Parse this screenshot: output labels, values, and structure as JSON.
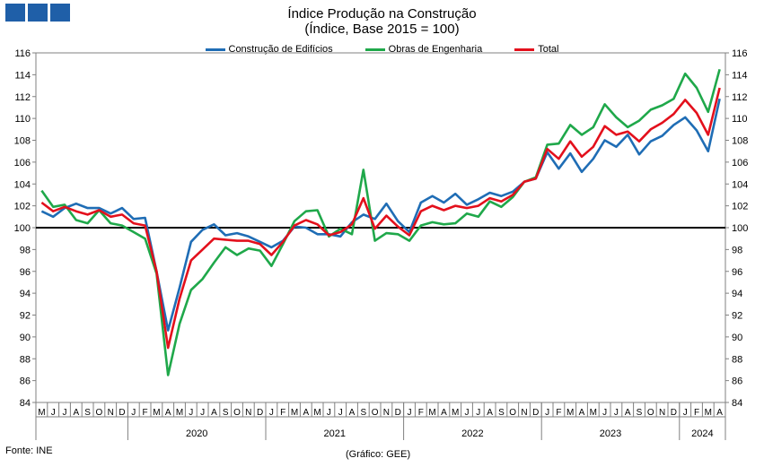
{
  "header": {
    "logo": "logo-squares"
  },
  "chart_data": {
    "type": "line",
    "title": "Índice Produção na Construção",
    "subtitle": "(Índice, Base 2015 = 100)",
    "ylim": [
      84,
      116
    ],
    "yticks": [
      84,
      86,
      88,
      90,
      92,
      94,
      96,
      98,
      100,
      102,
      104,
      106,
      108,
      110,
      112,
      114,
      116
    ],
    "reference_line": 100,
    "legend_position": "top",
    "x": [
      "M",
      "J",
      "J",
      "A",
      "S",
      "O",
      "N",
      "D",
      "J",
      "F",
      "M",
      "A",
      "M",
      "J",
      "J",
      "A",
      "S",
      "O",
      "N",
      "D",
      "J",
      "F",
      "M",
      "A",
      "M",
      "J",
      "J",
      "A",
      "S",
      "O",
      "N",
      "D",
      "J",
      "F",
      "M",
      "A",
      "M",
      "J",
      "J",
      "A",
      "S",
      "O",
      "N",
      "D",
      "J",
      "F",
      "M",
      "A",
      "M",
      "J",
      "J",
      "A",
      "S",
      "O",
      "N",
      "D",
      "J",
      "F",
      "M",
      "A"
    ],
    "year_groups": [
      {
        "label": "",
        "start": 0,
        "end": 8
      },
      {
        "label": "2020",
        "start": 8,
        "end": 20
      },
      {
        "label": "2021",
        "start": 20,
        "end": 32
      },
      {
        "label": "2022",
        "start": 32,
        "end": 44
      },
      {
        "label": "2023",
        "start": 44,
        "end": 56
      },
      {
        "label": "2024",
        "start": 56,
        "end": 60
      }
    ],
    "series": [
      {
        "name": "Construção de Edifícios",
        "color": "#1f6db5",
        "values": [
          101.5,
          101.0,
          101.8,
          102.2,
          101.8,
          101.8,
          101.3,
          101.8,
          100.8,
          100.9,
          96.0,
          90.6,
          94.5,
          98.7,
          99.8,
          100.3,
          99.3,
          99.5,
          99.2,
          98.7,
          98.2,
          98.8,
          100.1,
          100.0,
          99.4,
          99.4,
          99.2,
          100.5,
          101.2,
          100.8,
          102.2,
          100.6,
          99.6,
          102.3,
          102.9,
          102.3,
          103.1,
          102.1,
          102.6,
          103.2,
          102.9,
          103.3,
          104.2,
          104.5,
          106.9,
          105.4,
          106.8,
          105.1,
          106.3,
          108.0,
          107.4,
          108.5,
          106.7,
          107.9,
          108.4,
          109.4,
          110.1,
          108.9,
          107.0,
          111.8
        ]
      },
      {
        "name": "Obras de Engenharia",
        "color": "#1fa84a",
        "values": [
          103.4,
          101.9,
          102.1,
          100.7,
          100.4,
          101.6,
          100.4,
          100.2,
          99.6,
          99.0,
          95.8,
          86.5,
          91.2,
          94.3,
          95.3,
          96.8,
          98.2,
          97.5,
          98.1,
          97.9,
          96.5,
          98.5,
          100.6,
          101.5,
          101.6,
          99.2,
          99.9,
          99.4,
          105.3,
          98.8,
          99.5,
          99.4,
          98.8,
          100.2,
          100.5,
          100.3,
          100.4,
          101.3,
          101.0,
          102.4,
          101.9,
          102.8,
          104.2,
          104.6,
          107.6,
          107.7,
          109.4,
          108.5,
          109.2,
          111.3,
          110.1,
          109.2,
          109.8,
          110.8,
          111.2,
          111.8,
          114.1,
          112.8,
          110.6,
          114.5
        ]
      },
      {
        "name": "Total",
        "color": "#e3101c",
        "values": [
          102.3,
          101.5,
          101.9,
          101.5,
          101.2,
          101.6,
          101.0,
          101.2,
          100.4,
          100.2,
          96.0,
          89.0,
          93.5,
          97.0,
          98.0,
          99.0,
          98.9,
          98.8,
          98.8,
          98.5,
          97.5,
          98.7,
          100.2,
          100.7,
          100.3,
          99.3,
          99.6,
          100.3,
          102.7,
          99.9,
          101.1,
          100.1,
          99.3,
          101.5,
          102.0,
          101.6,
          102.0,
          101.8,
          102.0,
          102.7,
          102.4,
          103.0,
          104.2,
          104.5,
          107.2,
          106.3,
          107.9,
          106.5,
          107.4,
          109.3,
          108.5,
          108.8,
          107.9,
          109.0,
          109.6,
          110.4,
          111.7,
          110.5,
          108.5,
          112.8
        ]
      }
    ]
  },
  "footer": {
    "source": "Fonte: INE",
    "credit": "(Gráfico: GEE)"
  }
}
